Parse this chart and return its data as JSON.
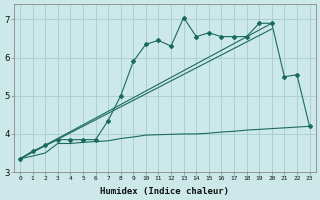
{
  "xlabel": "Humidex (Indice chaleur)",
  "bg_color": "#cce8e8",
  "grid_color": "#aacccc",
  "line_color": "#1a6b5a",
  "xlim": [
    -0.5,
    23.5
  ],
  "ylim": [
    3.0,
    7.4
  ],
  "xticks": [
    0,
    1,
    2,
    3,
    4,
    5,
    6,
    7,
    8,
    9,
    10,
    11,
    12,
    13,
    14,
    15,
    16,
    17,
    18,
    19,
    20,
    21,
    22,
    23
  ],
  "yticks": [
    3,
    4,
    5,
    6,
    7
  ],
  "line1_x": [
    0,
    1,
    2,
    3,
    4,
    5,
    6,
    7,
    8,
    9,
    10,
    11,
    12,
    13,
    14,
    15,
    16,
    17,
    18,
    19,
    20,
    21,
    22,
    23
  ],
  "line1_y": [
    3.35,
    3.55,
    3.7,
    3.85,
    3.85,
    3.85,
    3.85,
    4.35,
    5.0,
    5.9,
    6.35,
    6.45,
    6.3,
    7.05,
    6.55,
    6.65,
    6.55,
    6.55,
    6.55,
    6.9,
    6.9,
    5.5,
    5.55,
    4.2
  ],
  "line2_x": [
    0,
    1,
    2,
    3,
    4,
    5,
    6,
    7,
    8,
    9,
    10,
    11,
    12,
    13,
    14,
    15,
    16,
    17,
    18,
    19,
    20,
    21,
    22,
    23
  ],
  "line2_y": [
    3.35,
    3.42,
    3.5,
    3.75,
    3.75,
    3.78,
    3.8,
    3.82,
    3.88,
    3.92,
    3.97,
    3.98,
    3.99,
    4.0,
    4.0,
    4.02,
    4.05,
    4.07,
    4.1,
    4.12,
    4.14,
    4.16,
    4.18,
    4.2
  ],
  "line3_x": [
    0,
    20
  ],
  "line3_y": [
    3.35,
    6.9
  ],
  "line4_x": [
    0,
    20
  ],
  "line4_y": [
    3.35,
    6.75
  ]
}
